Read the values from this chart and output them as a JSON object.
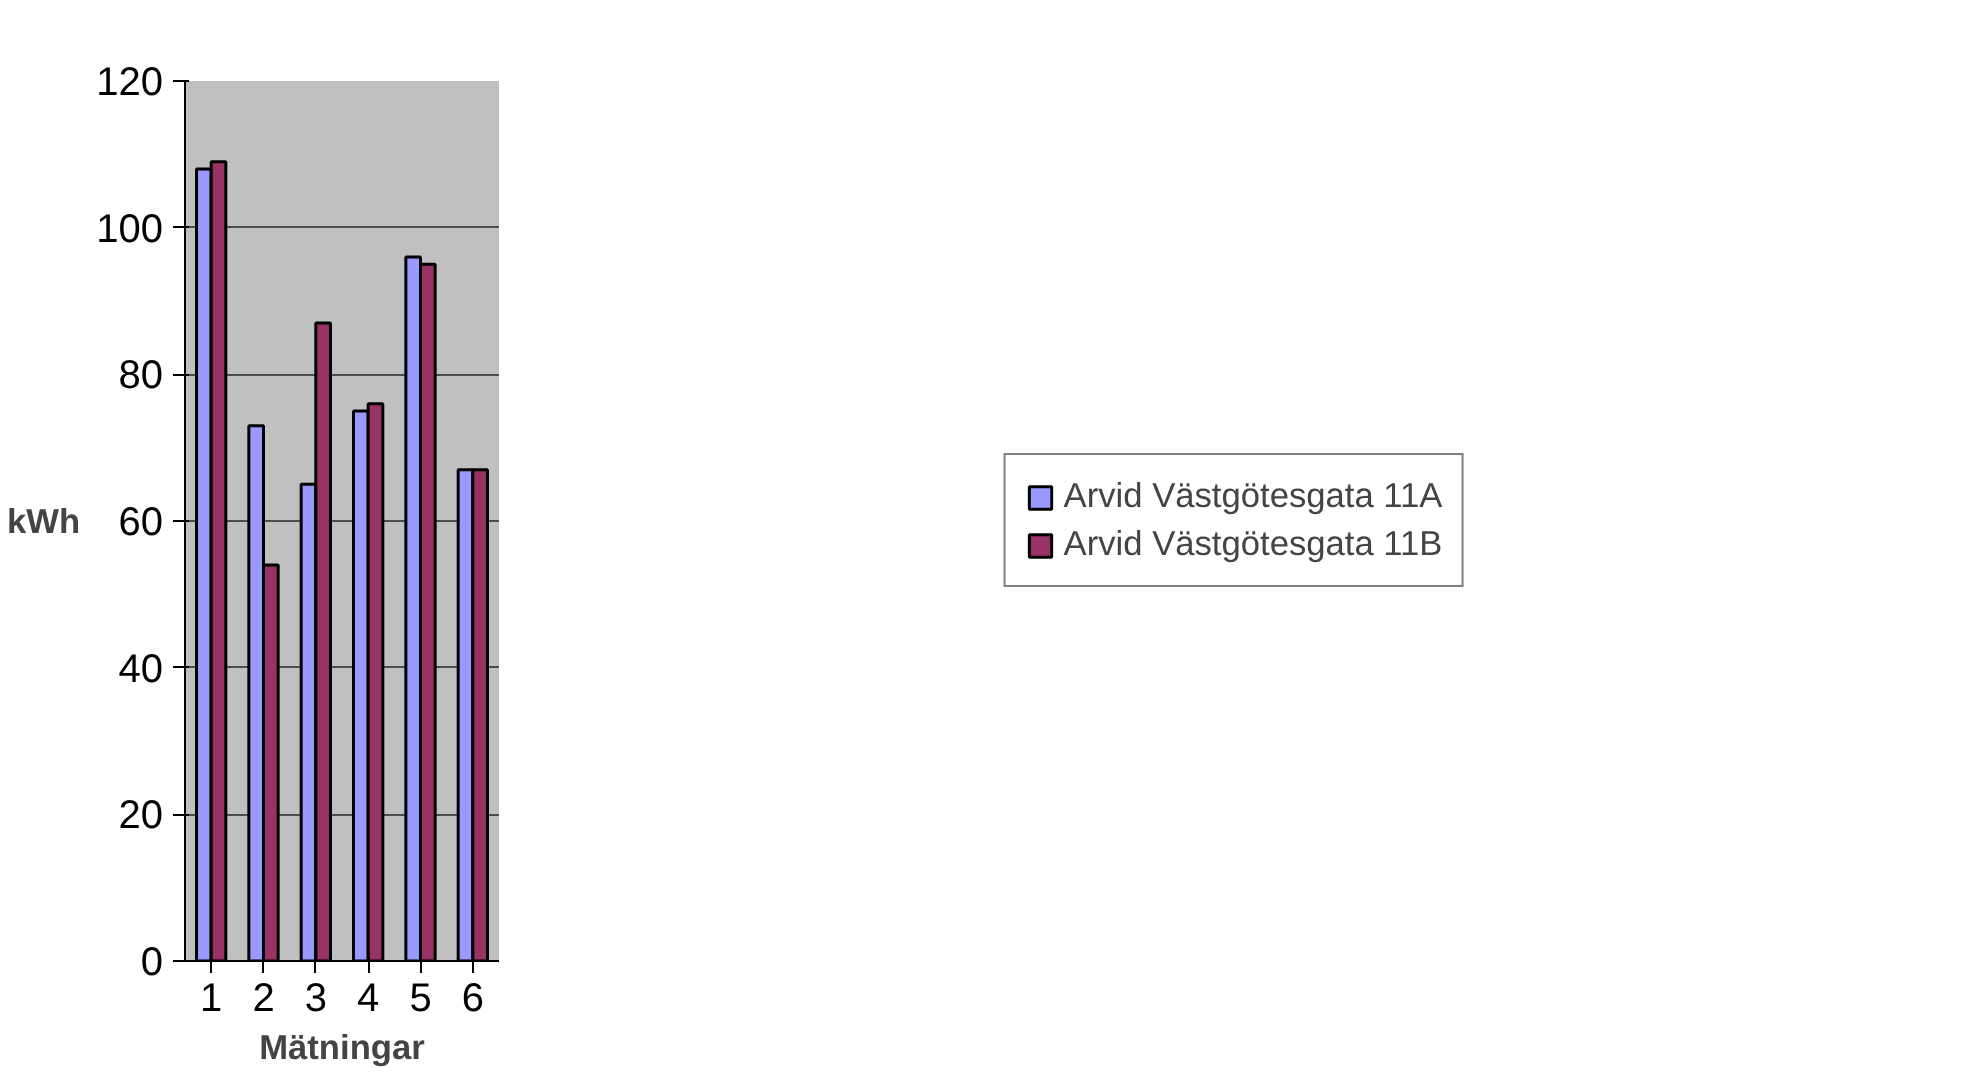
{
  "chart_data": {
    "type": "bar",
    "xlabel": "Mätningar",
    "ylabel": "kWh",
    "categories": [
      "1",
      "2",
      "3",
      "4",
      "5",
      "6"
    ],
    "series": [
      {
        "name": "Arvid Västgötesgata 11A",
        "color": "#9999ff",
        "values": [
          108,
          73,
          65,
          75,
          96,
          67
        ]
      },
      {
        "name": "Arvid Västgötesgata 11B",
        "color": "#993366",
        "values": [
          109,
          54,
          87,
          76,
          95,
          67
        ]
      }
    ],
    "ylim": [
      0,
      120
    ],
    "yticks": [
      0,
      20,
      40,
      60,
      80,
      100,
      120
    ],
    "grid": "y",
    "legend": "right"
  }
}
